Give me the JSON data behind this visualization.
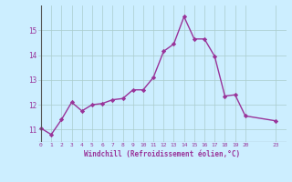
{
  "x": [
    0,
    1,
    2,
    3,
    4,
    5,
    6,
    7,
    8,
    9,
    10,
    11,
    12,
    13,
    14,
    15,
    16,
    17,
    18,
    19,
    20,
    23
  ],
  "y": [
    11.05,
    10.8,
    11.4,
    12.1,
    11.75,
    12.0,
    12.05,
    12.2,
    12.25,
    12.6,
    12.6,
    13.1,
    14.15,
    14.45,
    15.55,
    14.65,
    14.65,
    13.95,
    12.35,
    12.4,
    11.55,
    11.35
  ],
  "xticks": [
    0,
    1,
    2,
    3,
    4,
    5,
    6,
    7,
    8,
    9,
    10,
    11,
    12,
    13,
    14,
    15,
    16,
    17,
    18,
    19,
    20,
    23
  ],
  "yticks": [
    11,
    12,
    13,
    14,
    15
  ],
  "ylim": [
    10.5,
    16.0
  ],
  "xlim": [
    -0.3,
    24.0
  ],
  "line_color": "#993399",
  "marker": "D",
  "marker_size": 2.2,
  "linewidth": 1.0,
  "xlabel": "Windchill (Refroidissement éolien,°C)",
  "bg_color": "#cceeff",
  "grid_color": "#aacccc",
  "axis_line_color": "#555555"
}
